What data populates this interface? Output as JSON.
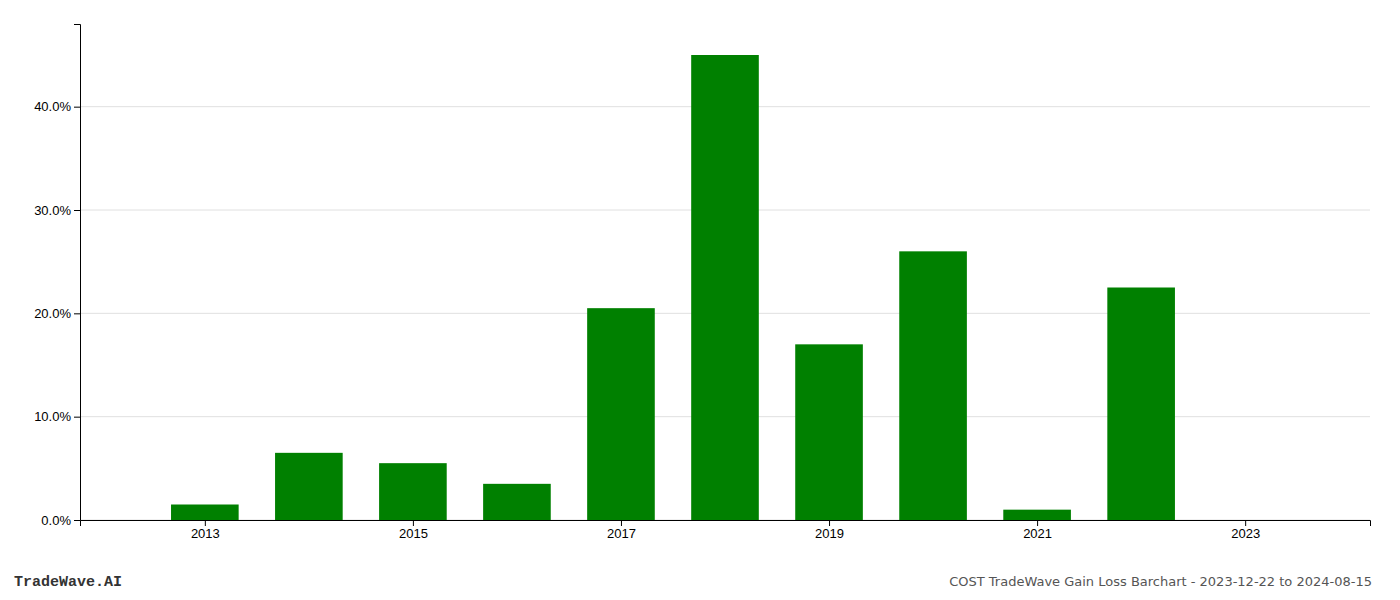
{
  "chart_data": {
    "type": "bar",
    "title": "COST TradeWave Gain Loss Barchart - 2023-12-22 to 2024-08-15",
    "annotations": [
      "TradeWave.AI"
    ],
    "x": [
      2013,
      2014,
      2015,
      2016,
      2017,
      2018,
      2019,
      2020,
      2021,
      2022
    ],
    "values": [
      0.015,
      0.065,
      0.055,
      0.035,
      0.205,
      0.45,
      0.17,
      0.26,
      0.01,
      0.225
    ],
    "color": "#008000",
    "xlim": [
      2011.8,
      2024.2
    ],
    "xticks": [
      2013,
      2015,
      2017,
      2019,
      2021,
      2023
    ],
    "ylim": [
      0,
      0.48
    ],
    "yticks": [
      {
        "value": 0.0,
        "label": "0.0%"
      },
      {
        "value": 0.1,
        "label": "10.0%"
      },
      {
        "value": 0.2,
        "label": "20.0%"
      },
      {
        "value": 0.3,
        "label": "30.0%"
      },
      {
        "value": 0.4,
        "label": "40.0%"
      }
    ],
    "grid": true
  }
}
